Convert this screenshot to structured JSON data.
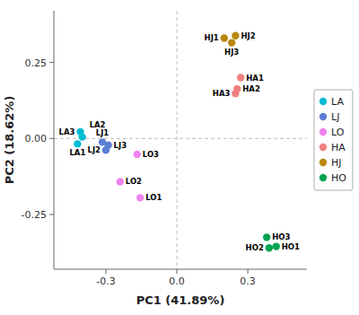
{
  "chart_data": {
    "type": "scatter",
    "xlabel": "PC1 (41.89%)",
    "ylabel": "PC2 (18.62%)",
    "xlim": [
      -0.52,
      0.55
    ],
    "ylim": [
      -0.43,
      0.42
    ],
    "xticks": [
      -0.3,
      {
        "value": 0.0,
        "label": "0.0"
      },
      0.3
    ],
    "yticks": [
      -0.25,
      {
        "value": 0.0,
        "label": "0.00"
      },
      0.25
    ],
    "legend": "right",
    "series": [
      {
        "name": "LA",
        "color": "#00BCD4",
        "labels": [
          "LA1",
          "LA2",
          "LA3"
        ],
        "x": [
          -0.42,
          -0.4,
          -0.408
        ],
        "values": [
          -0.018,
          0.005,
          0.022
        ]
      },
      {
        "name": "LJ",
        "color": "#5B7FD4",
        "labels": [
          "LJ1",
          "LJ2",
          "LJ3"
        ],
        "x": [
          -0.315,
          -0.3,
          -0.29
        ],
        "values": [
          -0.012,
          -0.038,
          -0.022
        ]
      },
      {
        "name": "LO",
        "color": "#EE82EE",
        "labels": [
          "LO1",
          "LO2",
          "LO3"
        ],
        "x": [
          -0.155,
          -0.24,
          -0.168
        ],
        "values": [
          -0.195,
          -0.142,
          -0.052
        ]
      },
      {
        "name": "HA",
        "color": "#F08080",
        "labels": [
          "HA1",
          "HA2",
          "HA3"
        ],
        "x": [
          0.27,
          0.255,
          0.248
        ],
        "values": [
          0.2,
          0.163,
          0.148
        ]
      },
      {
        "name": "HJ",
        "color": "#B8860B",
        "labels": [
          "HJ1",
          "HJ2",
          "HJ3"
        ],
        "x": [
          0.2,
          0.248,
          0.232
        ],
        "values": [
          0.33,
          0.338,
          0.315
        ]
      },
      {
        "name": "HO",
        "color": "#00A550",
        "labels": [
          "HO1",
          "HO2",
          "HO3"
        ],
        "x": [
          0.42,
          0.39,
          0.38
        ],
        "values": [
          -0.355,
          -0.36,
          -0.325
        ]
      }
    ]
  }
}
